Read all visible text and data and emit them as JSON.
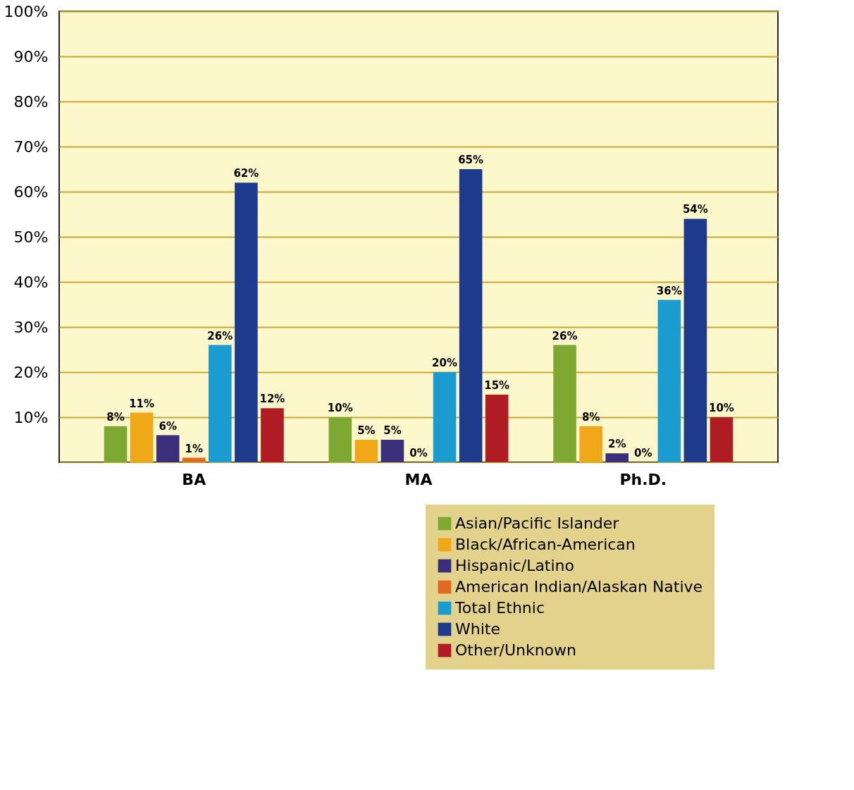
{
  "chart_data": {
    "type": "bar",
    "categories": [
      "BA",
      "MA",
      "Ph.D."
    ],
    "series": [
      {
        "name": "Asian/Pacific Islander",
        "color": "#7ea832",
        "values": [
          8,
          10,
          26
        ],
        "value_labels": [
          "8%",
          "10%",
          "26%"
        ]
      },
      {
        "name": "Black/African-American",
        "color": "#f0a818",
        "values": [
          11,
          5,
          8
        ],
        "value_labels": [
          "11%",
          "5%",
          "8%"
        ]
      },
      {
        "name": "Hispanic/Latino",
        "color": "#3a2f7a",
        "values": [
          6,
          5,
          2
        ],
        "value_labels": [
          "6%",
          "5%",
          "2%"
        ]
      },
      {
        "name": "American Indian/Alaskan Native",
        "color": "#e06a20",
        "values": [
          1,
          0,
          0
        ],
        "value_labels": [
          "1%",
          "0%",
          "0%"
        ]
      },
      {
        "name": "Total Ethnic",
        "color": "#1a9cd0",
        "values": [
          26,
          20,
          36
        ],
        "value_labels": [
          "26%",
          "20%",
          "36%"
        ]
      },
      {
        "name": "White",
        "color": "#1e3a8c",
        "values": [
          62,
          65,
          54
        ],
        "value_labels": [
          "62%",
          "65%",
          "54%"
        ]
      },
      {
        "name": "Other/Unknown",
        "color": "#b01c24",
        "values": [
          12,
          15,
          10
        ],
        "value_labels": [
          "12%",
          "15%",
          "10%"
        ]
      }
    ],
    "ylim": [
      0,
      100
    ],
    "yticks": [
      {
        "value": 10,
        "label": "10%"
      },
      {
        "value": 20,
        "label": "20%"
      },
      {
        "value": 30,
        "label": "30%"
      },
      {
        "value": 40,
        "label": "40%"
      },
      {
        "value": 50,
        "label": "50%"
      },
      {
        "value": 60,
        "label": "60%"
      },
      {
        "value": 70,
        "label": "70%"
      },
      {
        "value": 80,
        "label": "80%"
      },
      {
        "value": 90,
        "label": "90%"
      },
      {
        "value": 100,
        "label": "100%"
      }
    ],
    "grid": "y",
    "legend": "bottom right"
  }
}
